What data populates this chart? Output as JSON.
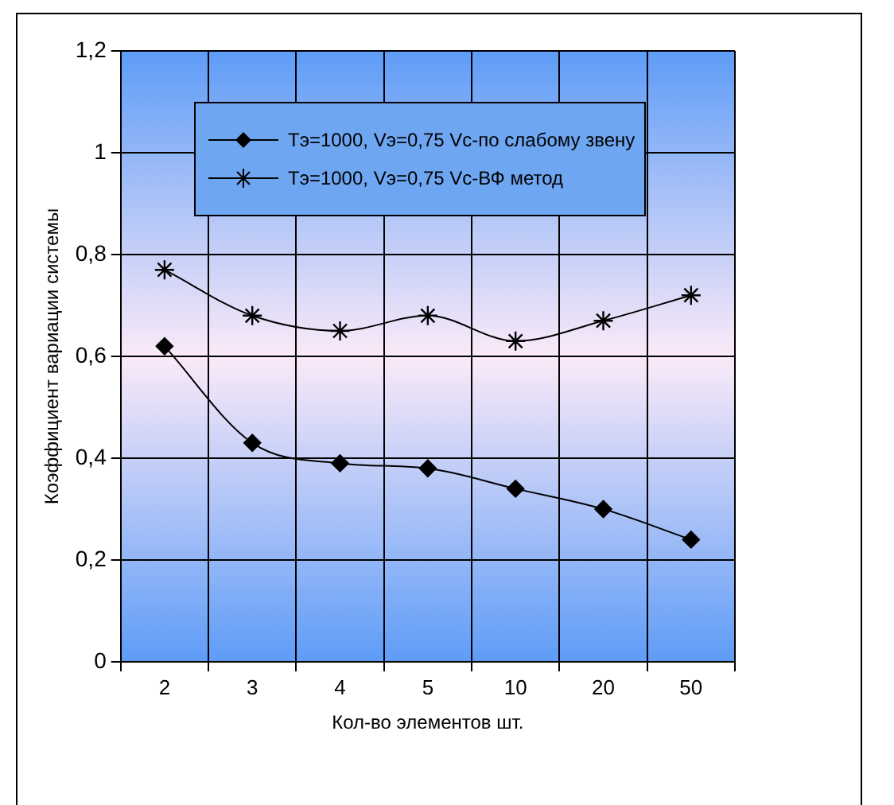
{
  "chart_data": {
    "type": "line",
    "xlabel": "Кол-во элементов шт.",
    "ylabel": "Коэффициент вариации системы",
    "categories": [
      "2",
      "3",
      "4",
      "5",
      "10",
      "20",
      "50"
    ],
    "series": [
      {
        "name": "Тэ=1000, Vэ=0,75 Vс-по слабому звену",
        "color": "#000000",
        "marker": "diamond",
        "values": [
          0.62,
          0.43,
          0.39,
          0.38,
          0.34,
          0.3,
          0.24
        ]
      },
      {
        "name": "Тэ=1000, Vэ=0,75 Vс-ВФ метод",
        "color": "#000000",
        "marker": "cross",
        "values": [
          0.77,
          0.68,
          0.65,
          0.68,
          0.63,
          0.67,
          0.72
        ]
      }
    ],
    "ylim": [
      0,
      1.2
    ],
    "yticks": [
      0,
      {
        "value": 0.2,
        "label": "0,2"
      },
      {
        "value": 0.4,
        "label": "0,4"
      },
      {
        "value": 0.6,
        "label": "0,6"
      },
      {
        "value": 0.8,
        "label": "0,8"
      },
      1,
      {
        "value": 1.2,
        "label": "1,2"
      }
    ],
    "grid": true,
    "legend": "top"
  }
}
